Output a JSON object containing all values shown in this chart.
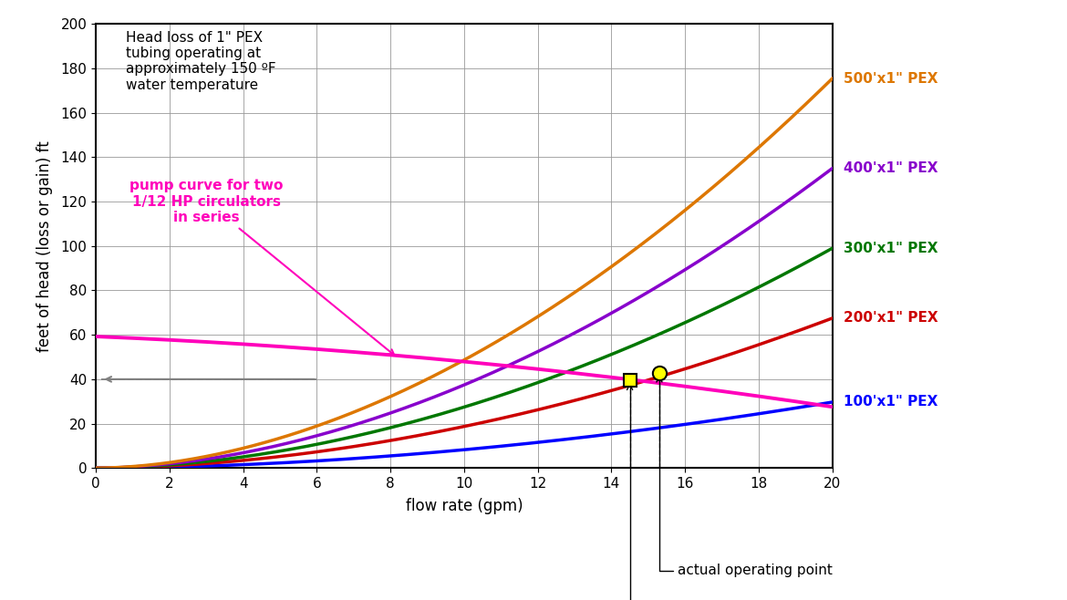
{
  "xlabel": "flow rate (gpm)",
  "ylabel": "feet of head (loss or gain) ft",
  "xlim": [
    0,
    20
  ],
  "ylim": [
    0,
    200
  ],
  "xticks": [
    0,
    2,
    4,
    6,
    8,
    10,
    12,
    14,
    16,
    18,
    20
  ],
  "yticks": [
    0,
    20,
    40,
    60,
    80,
    100,
    120,
    140,
    160,
    180,
    200
  ],
  "pex_labels": [
    "100'x1\" PEX",
    "200'x1\" PEX",
    "300'x1\" PEX",
    "400'x1\" PEX",
    "500'x1\" PEX"
  ],
  "pex_colors": [
    "#0000ff",
    "#cc0000",
    "#007700",
    "#8800cc",
    "#dd7700"
  ],
  "pex_k": [
    0.046,
    0.092,
    0.138,
    0.184,
    0.23
  ],
  "pex_exp": 1.85,
  "pump_color": "#ff00bb",
  "pump_q": [
    0,
    2,
    4,
    6,
    8,
    10,
    12,
    14,
    15,
    16,
    18,
    20
  ],
  "pump_h": [
    59,
    58,
    56,
    53,
    51,
    48,
    45,
    41,
    39,
    36,
    32,
    28
  ],
  "annotation_text": "Head loss of 1\" PEX\ntubing operating at\napproximately 150 ºF\nwater temperature",
  "pump_label": "pump curve for two\n1/12 HP circulators\nin series",
  "actual_op": [
    15.3,
    43.0
  ],
  "target_op": [
    14.5,
    39.5
  ],
  "dashed_y": 40,
  "dashed_x_end": 6,
  "background_color": "#ffffff",
  "grid_color": "#999999"
}
